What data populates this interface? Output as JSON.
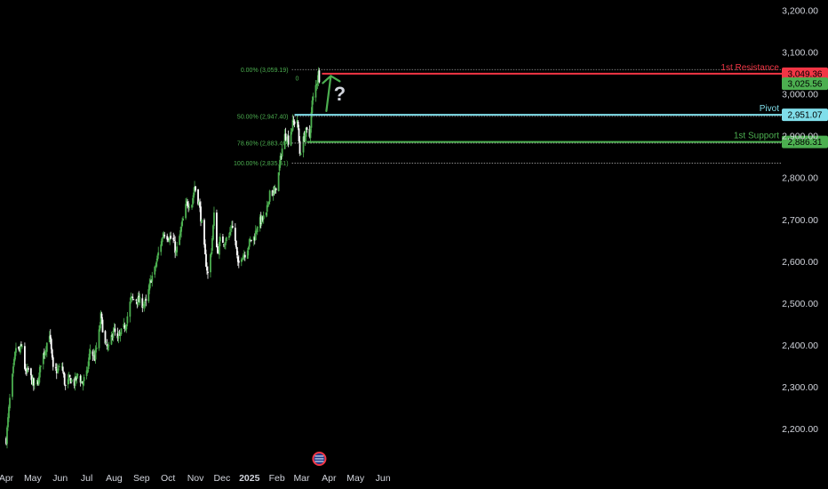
{
  "chart_data": {
    "type": "candlestick",
    "title": "",
    "xlabel": "",
    "ylabel": "",
    "ylim": [
      2150,
      3200
    ],
    "y_ticks": [
      2200,
      2300,
      2400,
      2500,
      2600,
      2700,
      2800,
      2900,
      3000,
      3100,
      3200
    ],
    "y_tick_labels": [
      "2,200.00",
      "2,300.00",
      "2,400.00",
      "2,500.00",
      "2,600.00",
      "2,700.00",
      "2,800.00",
      "2,900.00",
      "3,000.00",
      "3,100.00",
      "3,200.00"
    ],
    "x_ticks": [
      "2024-04-01",
      "2024-05-01",
      "2024-06-01",
      "2024-07-01",
      "2024-08-01",
      "2024-09-01",
      "2024-10-01",
      "2024-11-01",
      "2024-12-01",
      "2025-01-01",
      "2025-02-01",
      "2025-03-01",
      "2025-04-01",
      "2025-05-01",
      "2025-06-01"
    ],
    "x_tick_labels": [
      "Apr",
      "May",
      "Jun",
      "Jul",
      "Aug",
      "Sep",
      "Oct",
      "Nov",
      "Dec",
      "2025",
      "Feb",
      "Mar",
      "Apr",
      "May",
      "Jun"
    ],
    "price_path": [
      [
        "2024-04-01",
        2175
      ],
      [
        "2024-04-05",
        2270
      ],
      [
        "2024-04-09",
        2340
      ],
      [
        "2024-04-12",
        2395
      ],
      [
        "2024-04-16",
        2385
      ],
      [
        "2024-04-19",
        2400
      ],
      [
        "2024-04-23",
        2330
      ],
      [
        "2024-04-26",
        2340
      ],
      [
        "2024-05-01",
        2310
      ],
      [
        "2024-05-03",
        2300
      ],
      [
        "2024-05-08",
        2320
      ],
      [
        "2024-05-10",
        2360
      ],
      [
        "2024-05-15",
        2390
      ],
      [
        "2024-05-20",
        2430
      ],
      [
        "2024-05-24",
        2340
      ],
      [
        "2024-05-29",
        2340
      ],
      [
        "2024-06-03",
        2350
      ],
      [
        "2024-06-07",
        2300
      ],
      [
        "2024-06-12",
        2320
      ],
      [
        "2024-06-17",
        2310
      ],
      [
        "2024-06-21",
        2330
      ],
      [
        "2024-06-26",
        2310
      ],
      [
        "2024-07-01",
        2330
      ],
      [
        "2024-07-05",
        2390
      ],
      [
        "2024-07-10",
        2370
      ],
      [
        "2024-07-15",
        2430
      ],
      [
        "2024-07-17",
        2470
      ],
      [
        "2024-07-22",
        2400
      ],
      [
        "2024-07-26",
        2390
      ],
      [
        "2024-07-31",
        2440
      ],
      [
        "2024-08-05",
        2410
      ],
      [
        "2024-08-09",
        2430
      ],
      [
        "2024-08-14",
        2450
      ],
      [
        "2024-08-20",
        2510
      ],
      [
        "2024-08-26",
        2510
      ],
      [
        "2024-09-02",
        2500
      ],
      [
        "2024-09-06",
        2500
      ],
      [
        "2024-09-12",
        2560
      ],
      [
        "2024-09-16",
        2580
      ],
      [
        "2024-09-20",
        2620
      ],
      [
        "2024-09-26",
        2670
      ],
      [
        "2024-10-01",
        2660
      ],
      [
        "2024-10-07",
        2650
      ],
      [
        "2024-10-10",
        2620
      ],
      [
        "2024-10-16",
        2680
      ],
      [
        "2024-10-22",
        2740
      ],
      [
        "2024-10-28",
        2740
      ],
      [
        "2024-10-31",
        2780
      ],
      [
        "2024-11-05",
        2740
      ],
      [
        "2024-11-08",
        2690
      ],
      [
        "2024-11-12",
        2610
      ],
      [
        "2024-11-15",
        2570
      ],
      [
        "2024-11-19",
        2630
      ],
      [
        "2024-11-22",
        2710
      ],
      [
        "2024-11-26",
        2620
      ],
      [
        "2024-11-29",
        2650
      ],
      [
        "2024-12-04",
        2650
      ],
      [
        "2024-12-09",
        2660
      ],
      [
        "2024-12-12",
        2690
      ],
      [
        "2024-12-16",
        2650
      ],
      [
        "2024-12-19",
        2590
      ],
      [
        "2024-12-23",
        2615
      ],
      [
        "2024-12-27",
        2620
      ],
      [
        "2025-01-02",
        2650
      ],
      [
        "2025-01-07",
        2660
      ],
      [
        "2025-01-10",
        2690
      ],
      [
        "2025-01-15",
        2700
      ],
      [
        "2025-01-20",
        2710
      ],
      [
        "2025-01-24",
        2770
      ],
      [
        "2025-01-29",
        2760
      ],
      [
        "2025-02-03",
        2810
      ],
      [
        "2025-02-06",
        2860
      ],
      [
        "2025-02-10",
        2900
      ],
      [
        "2025-02-12",
        2900
      ],
      [
        "2025-02-14",
        2890
      ],
      [
        "2025-02-19",
        2930
      ],
      [
        "2025-02-24",
        2940
      ],
      [
        "2025-02-27",
        2860
      ],
      [
        "2025-03-03",
        2890
      ],
      [
        "2025-03-06",
        2910
      ],
      [
        "2025-03-10",
        2900
      ],
      [
        "2025-03-13",
        2980
      ],
      [
        "2025-03-18",
        3030
      ],
      [
        "2025-03-20",
        3050
      ],
      [
        "2025-03-21",
        3040
      ],
      [
        "2025-03-22",
        3025
      ]
    ],
    "fibonacci": [
      {
        "label": "0.00% (3,059.19)",
        "value": 3059.19
      },
      {
        "label": "0",
        "value": 3039
      },
      {
        "label": "50.00% (2,947.40)",
        "value": 2947.4
      },
      {
        "label": "78.60% (2,883.46)",
        "value": 2883.46
      },
      {
        "label": "100.00% (2,835.61)",
        "value": 2835.61
      }
    ],
    "levels": [
      {
        "name": "1st Resistance",
        "value": 3049.36,
        "value_label": "3,049.36",
        "color": "#f23645"
      },
      {
        "name": "Pivot",
        "value": 2951.07,
        "value_label": "2,951.07",
        "color": "#80deea"
      },
      {
        "name": "1st Support",
        "value": 2886.31,
        "value_label": "2,886.31",
        "color": "#4caf50"
      }
    ],
    "current_price": {
      "value": 3025.56,
      "label": "3,025.56",
      "color": "#4caf50"
    },
    "annotation": "?",
    "colors": {
      "up": "#4caf50",
      "down": "#ffffff",
      "background": "#000000",
      "text": "#d1d4dc"
    }
  }
}
